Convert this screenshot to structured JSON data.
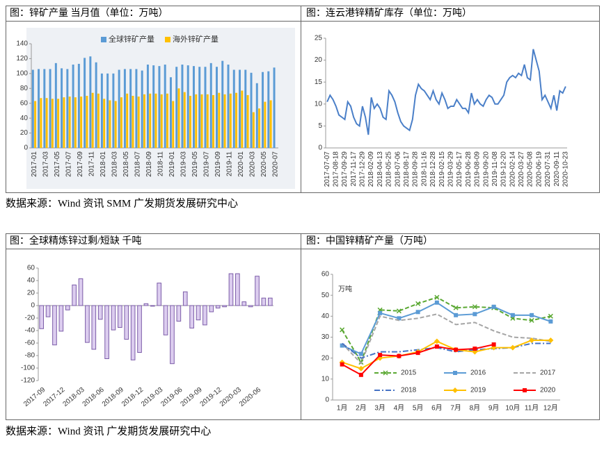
{
  "chart_data": [
    {
      "type": "bar",
      "title": "图：锌矿产量 当月值（单位：万吨）",
      "legend": "top",
      "categories": [
        "2017-01",
        null,
        "2017-03",
        null,
        "2017-05",
        null,
        "2017-07",
        null,
        "2017-09",
        null,
        "2017-11",
        null,
        "2018-01",
        null,
        "2018-03",
        null,
        "2018-05",
        null,
        "2018-07",
        null,
        "2018-09",
        null,
        "2018-11",
        null,
        "2019-01",
        null,
        "2019-03",
        null,
        "2019-05",
        null,
        "2019-07",
        null,
        "2019-09",
        null,
        "2019-11",
        null,
        "2020-01",
        null,
        "2020-03",
        null,
        "2020-05",
        null,
        "2020-07"
      ],
      "series": [
        {
          "name": "全球锌矿产量",
          "color": "#5b9bd5",
          "values": [
            105,
            106,
            106,
            106,
            114,
            107,
            106,
            112,
            113,
            121,
            123,
            115,
            100,
            100,
            100,
            105,
            106,
            106,
            106,
            104,
            112,
            111,
            110,
            112,
            95,
            109,
            112,
            111,
            110,
            109,
            109,
            114,
            109,
            117,
            112,
            105,
            105,
            105,
            101,
            87,
            102,
            103,
            108
          ]
        },
        {
          "name": "海外锌矿产量",
          "color": "#ffc000",
          "values": [
            63,
            67,
            67,
            66,
            66,
            68,
            69,
            68,
            69,
            70,
            74,
            73,
            66,
            64,
            63,
            68,
            73,
            70,
            69,
            72,
            73,
            73,
            72,
            73,
            63,
            80,
            75,
            70,
            72,
            72,
            72,
            71,
            74,
            72,
            73,
            74,
            77,
            71,
            48,
            53,
            62,
            64,
            null
          ]
        }
      ],
      "ylim": [
        0,
        140
      ],
      "yticks": [
        0,
        20,
        40,
        60,
        80,
        100,
        120,
        140
      ],
      "grid": false
    },
    {
      "type": "line",
      "title": "图：连云港锌精矿库存（单位：万吨）",
      "color": "#4a7fc8",
      "categories": [
        "2017-07-07",
        null,
        null,
        "2017-08-18",
        null,
        null,
        "2017-09-29",
        null,
        null,
        "2017-11-17",
        null,
        null,
        "2017-12-29",
        null,
        null,
        "2018-02-09",
        null,
        null,
        "2018-04-13",
        null,
        null,
        "2018-05-25",
        null,
        null,
        "2018-07-06",
        null,
        null,
        "2018-08-17",
        null,
        null,
        "2018-09-28",
        null,
        null,
        "2018-11-16",
        null,
        null,
        "2018-12-28",
        null,
        null,
        "2019-02-15",
        null,
        null,
        "2019-03-29",
        null,
        null,
        "2019-05-17",
        null,
        null,
        "2019-06-28",
        null,
        null,
        "2019-08-09",
        null,
        null,
        "2019-09-20",
        null,
        null,
        "2019-11-08",
        null,
        null,
        "2019-12-20",
        null,
        null,
        "2020-02-14",
        null,
        null,
        "2020-03-27",
        null,
        null,
        "2020-05-08",
        null,
        null,
        "2020-06-19",
        null,
        null,
        "2020-07-31",
        null,
        null,
        "2020-09-11",
        null,
        null,
        "2020-10-23"
      ],
      "values": [
        10.5,
        12,
        11,
        9.5,
        7.5,
        7,
        6.5,
        10.5,
        9.5,
        7,
        5.5,
        5,
        9.5,
        7,
        3,
        11.5,
        9,
        10,
        9,
        7,
        6.5,
        13,
        12,
        10.5,
        8,
        6,
        5,
        4.5,
        4,
        6.5,
        12,
        14.5,
        13.5,
        13,
        12,
        11,
        13,
        11,
        10,
        12.5,
        11,
        9,
        9.5,
        9.5,
        11,
        10,
        9,
        9,
        8,
        12.5,
        10,
        11,
        10,
        9.5,
        11,
        12,
        11.5,
        10,
        10,
        11,
        12,
        15,
        16,
        16.5,
        16,
        17,
        16.5,
        19,
        16,
        15.5,
        22.5,
        20,
        17.5,
        11,
        12,
        10.5,
        9,
        12,
        8.5,
        13,
        12.5,
        14
      ],
      "ylim": [
        0,
        25
      ],
      "yticks": [
        0,
        5,
        10,
        15,
        20,
        25
      ],
      "grid": false
    },
    {
      "type": "bar",
      "title": "图：全球精炼锌过剩/短缺 千吨",
      "color": "#dccdef",
      "edgecolor": "#7b5ca8",
      "categories": [
        "2017-09",
        null,
        null,
        "2017-12",
        null,
        null,
        "2018-03",
        null,
        null,
        "2018-06",
        null,
        null,
        "2018-09",
        null,
        null,
        "2018-12",
        null,
        null,
        "2019-03",
        null,
        null,
        "2019-06",
        null,
        null,
        "2019-09",
        null,
        null,
        "2019-12",
        null,
        null,
        "2020-03",
        null,
        null,
        "2020-06",
        null,
        null
      ],
      "values": [
        -37,
        -18,
        -63,
        -41,
        -7,
        33,
        43,
        -59,
        -70,
        -22,
        -85,
        -39,
        -35,
        -54,
        -87,
        -75,
        3,
        -1,
        36,
        -47,
        -93,
        -25,
        22,
        -36,
        -23,
        -31,
        -10,
        -4,
        -2,
        51,
        51,
        6,
        -2,
        47,
        12,
        12
      ],
      "ylim": [
        -120,
        60
      ],
      "yticks": [
        -120,
        -100,
        -80,
        -60,
        -40,
        -20,
        0,
        20,
        40,
        60
      ],
      "grid": false
    },
    {
      "type": "line",
      "title": "图：中国锌精矿产量（万吨）",
      "annotation": "万吨",
      "legend": "bottom",
      "categories": [
        "1月",
        "2月",
        "3月",
        "4月",
        "5月",
        "6月",
        "7月",
        "8月",
        "9月",
        "10月",
        "11月",
        "12月"
      ],
      "series": [
        {
          "name": "2015",
          "color": "#5aa832",
          "line_style": "dashed",
          "marker": "x",
          "values": [
            33.5,
            18,
            43,
            42.5,
            46,
            49,
            44,
            44.5,
            44,
            39,
            38,
            40
          ]
        },
        {
          "name": "2016",
          "color": "#5b9bd5",
          "line_style": "solid",
          "marker": "square",
          "values": [
            26,
            22,
            41.5,
            39,
            42,
            46.5,
            40.5,
            41,
            44.5,
            40.5,
            40.5,
            37.5
          ]
        },
        {
          "name": "2017",
          "color": "#a5a5a5",
          "line_style": "dashed",
          "marker": "none",
          "values": [
            27,
            17.5,
            40,
            38,
            39,
            41,
            36,
            37,
            33,
            30,
            29.5,
            28
          ]
        },
        {
          "name": "2018",
          "color": "#4472c4",
          "line_style": "dashdot",
          "marker": "none",
          "values": [
            27,
            20,
            23,
            23,
            24,
            25,
            23,
            24,
            24.5,
            25,
            27,
            27
          ]
        },
        {
          "name": "2019",
          "color": "#ffc000",
          "line_style": "solid",
          "marker": "diamond",
          "values": [
            18,
            15,
            20,
            21,
            23,
            28,
            24,
            23,
            25,
            25,
            28.5,
            28.5
          ]
        },
        {
          "name": "2020",
          "color": "#ff0000",
          "line_style": "solid",
          "marker": "square",
          "values": [
            17,
            12,
            21.5,
            21,
            22.5,
            25.5,
            24,
            24.5,
            26.5,
            null,
            null,
            null
          ]
        }
      ],
      "ylim": [
        0,
        60
      ],
      "yticks": [
        0,
        10,
        20,
        30,
        40,
        50,
        60
      ],
      "grid": false
    }
  ],
  "sources": [
    "数据来源：Wind 资讯 SMM 广发期货发展研究中心",
    "数据来源：Wind 资讯 广发期货发展研究中心"
  ]
}
